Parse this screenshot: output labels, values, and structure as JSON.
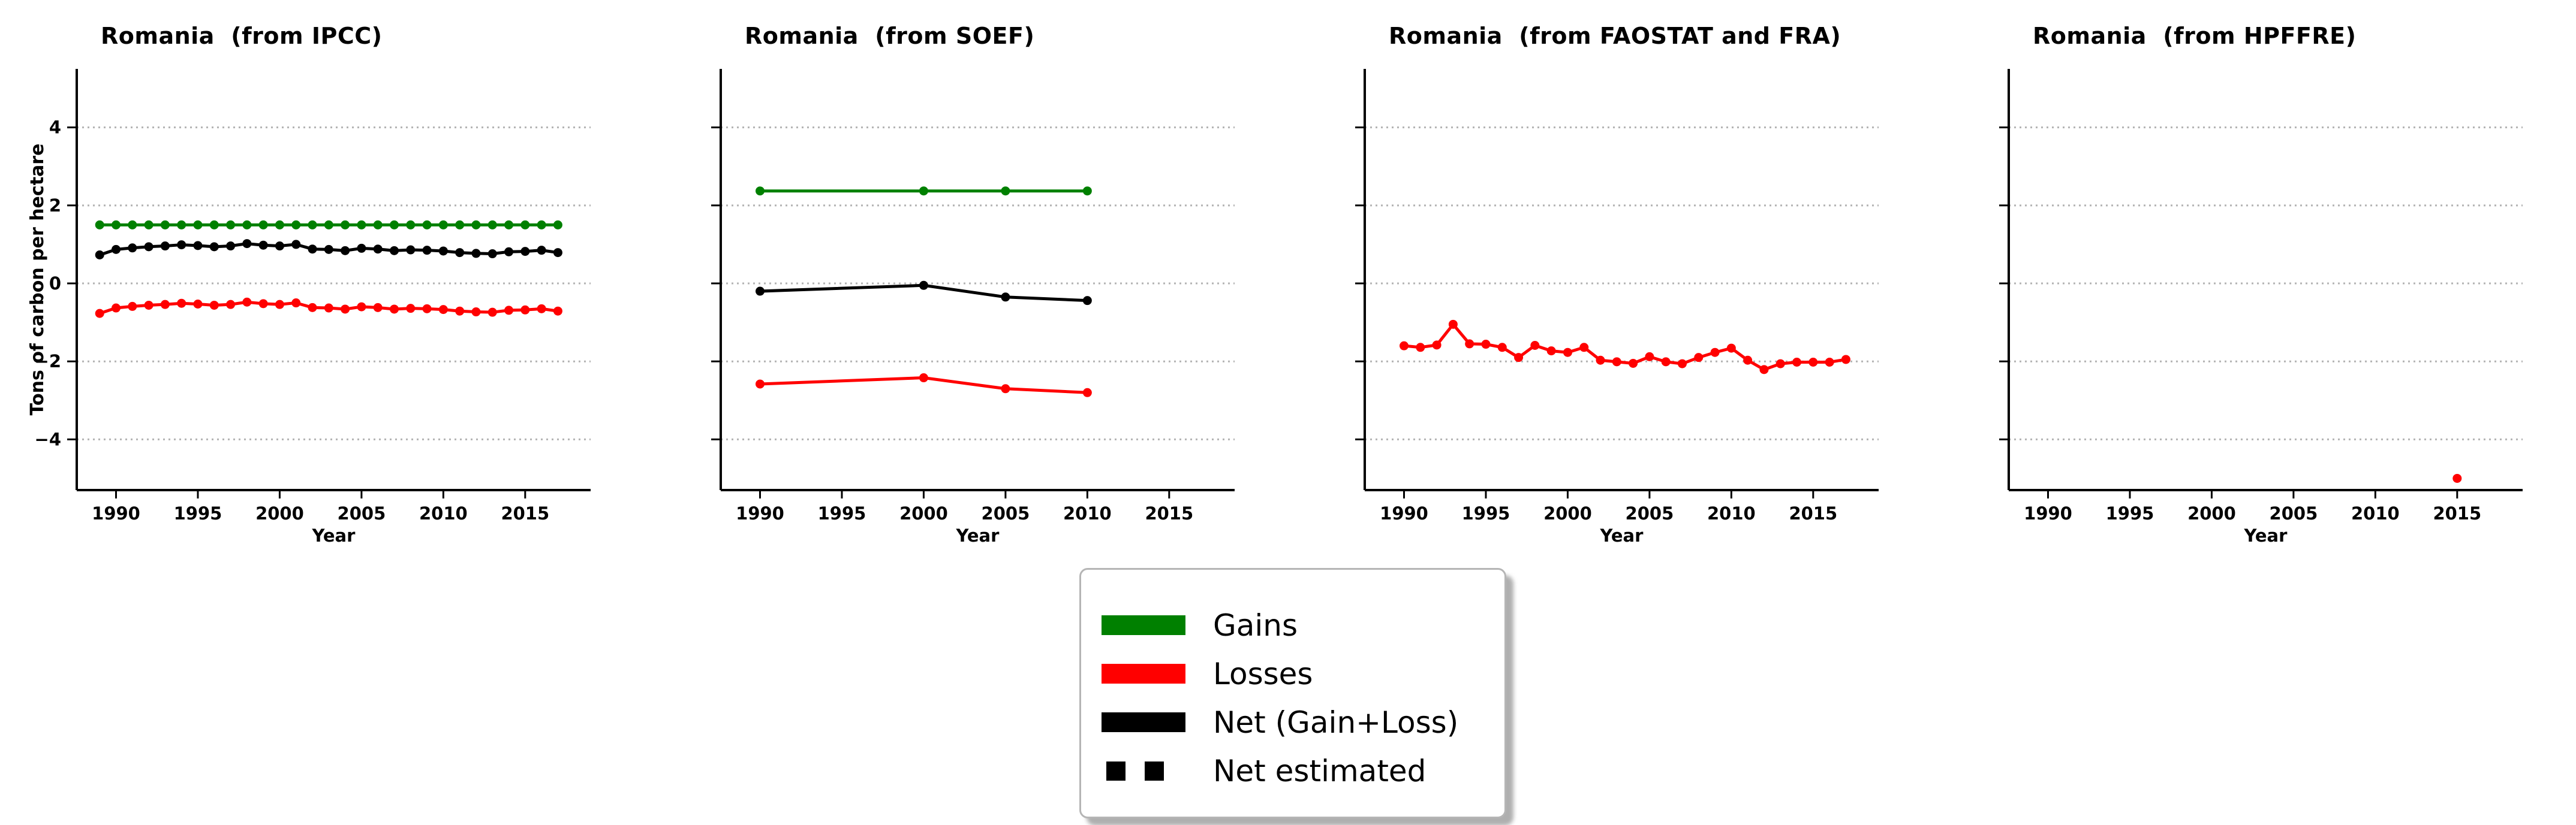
{
  "figure": {
    "xlabel": "Year",
    "ylabel": "Tons of carbon per hectare"
  },
  "legend": {
    "items": [
      {
        "label": "Gains",
        "color": "#008000",
        "swatch": "solid"
      },
      {
        "label": "Losses",
        "color": "#ff0000",
        "swatch": "solid"
      },
      {
        "label": "Net (Gain+Loss)",
        "color": "#000000",
        "swatch": "solid"
      },
      {
        "label": "Net estimated",
        "color": "#000000",
        "swatch": "dashed"
      }
    ]
  },
  "colors": {
    "gains": "#008000",
    "losses": "#ff0000",
    "net": "#000000",
    "grid": "#b3b3b3"
  },
  "chart_data": [
    {
      "type": "line",
      "title": "Romania  (from IPCC)",
      "xlabel": "Year",
      "ylabel": "Tons of carbon per hectare",
      "show_y_tick_labels": true,
      "xticks": [
        1990,
        1995,
        2000,
        2005,
        2010,
        2015
      ],
      "yticks": [
        -4,
        -2,
        0,
        2,
        4
      ],
      "xlim": [
        1987.6,
        2019.0
      ],
      "ylim": [
        -5.3,
        5.5
      ],
      "grid": true,
      "series": [
        {
          "name": "Gains",
          "color": "#008000",
          "x": [
            1989,
            1990,
            1991,
            1992,
            1993,
            1994,
            1995,
            1996,
            1997,
            1998,
            1999,
            2000,
            2001,
            2002,
            2003,
            2004,
            2005,
            2006,
            2007,
            2008,
            2009,
            2010,
            2011,
            2012,
            2013,
            2014,
            2015,
            2016,
            2017
          ],
          "y": [
            1.5,
            1.5,
            1.5,
            1.5,
            1.5,
            1.5,
            1.5,
            1.5,
            1.5,
            1.5,
            1.5,
            1.5,
            1.5,
            1.5,
            1.5,
            1.5,
            1.5,
            1.5,
            1.5,
            1.5,
            1.5,
            1.5,
            1.5,
            1.5,
            1.5,
            1.5,
            1.5,
            1.5,
            1.5
          ]
        },
        {
          "name": "Net (Gain+Loss)",
          "color": "#000000",
          "x": [
            1989,
            1990,
            1991,
            1992,
            1993,
            1994,
            1995,
            1996,
            1997,
            1998,
            1999,
            2000,
            2001,
            2002,
            2003,
            2004,
            2005,
            2006,
            2007,
            2008,
            2009,
            2010,
            2011,
            2012,
            2013,
            2014,
            2015,
            2016,
            2017
          ],
          "y": [
            0.73,
            0.87,
            0.91,
            0.94,
            0.96,
            0.99,
            0.97,
            0.94,
            0.96,
            1.02,
            0.98,
            0.96,
            1.0,
            0.88,
            0.87,
            0.84,
            0.9,
            0.88,
            0.84,
            0.86,
            0.85,
            0.83,
            0.79,
            0.77,
            0.76,
            0.81,
            0.82,
            0.85,
            0.79
          ]
        },
        {
          "name": "Losses",
          "color": "#ff0000",
          "x": [
            1989,
            1990,
            1991,
            1992,
            1993,
            1994,
            1995,
            1996,
            1997,
            1998,
            1999,
            2000,
            2001,
            2002,
            2003,
            2004,
            2005,
            2006,
            2007,
            2008,
            2009,
            2010,
            2011,
            2012,
            2013,
            2014,
            2015,
            2016,
            2017
          ],
          "y": [
            -0.77,
            -0.63,
            -0.59,
            -0.56,
            -0.54,
            -0.51,
            -0.53,
            -0.56,
            -0.54,
            -0.48,
            -0.52,
            -0.54,
            -0.5,
            -0.62,
            -0.63,
            -0.66,
            -0.6,
            -0.62,
            -0.66,
            -0.64,
            -0.65,
            -0.67,
            -0.71,
            -0.73,
            -0.74,
            -0.69,
            -0.68,
            -0.65,
            -0.71
          ]
        }
      ]
    },
    {
      "type": "line",
      "title": "Romania  (from SOEF)",
      "xlabel": "Year",
      "ylabel": "",
      "show_y_tick_labels": false,
      "xticks": [
        1990,
        1995,
        2000,
        2005,
        2010,
        2015
      ],
      "yticks": [
        -4,
        -2,
        0,
        2,
        4
      ],
      "xlim": [
        1987.6,
        2019.0
      ],
      "ylim": [
        -5.3,
        5.5
      ],
      "grid": true,
      "series": [
        {
          "name": "Gains",
          "color": "#008000",
          "x": [
            1990,
            2000,
            2005,
            2010
          ],
          "y": [
            2.37,
            2.37,
            2.37,
            2.37
          ]
        },
        {
          "name": "Net (Gain+Loss)",
          "color": "#000000",
          "x": [
            1990,
            2000,
            2005,
            2010
          ],
          "y": [
            -0.2,
            -0.05,
            -0.35,
            -0.44
          ]
        },
        {
          "name": "Losses",
          "color": "#ff0000",
          "x": [
            1990,
            2000,
            2005,
            2010
          ],
          "y": [
            -2.58,
            -2.42,
            -2.7,
            -2.8
          ]
        }
      ]
    },
    {
      "type": "line",
      "title": "Romania  (from FAOSTAT and FRA)",
      "xlabel": "Year",
      "ylabel": "",
      "show_y_tick_labels": false,
      "xticks": [
        1990,
        1995,
        2000,
        2005,
        2010,
        2015
      ],
      "yticks": [
        -4,
        -2,
        0,
        2,
        4
      ],
      "xlim": [
        1987.6,
        2019.0
      ],
      "ylim": [
        -5.3,
        5.5
      ],
      "grid": true,
      "series": [
        {
          "name": "Losses",
          "color": "#ff0000",
          "x": [
            1990,
            1991,
            1992,
            1993,
            1994,
            1995,
            1996,
            1997,
            1998,
            1999,
            2000,
            2001,
            2002,
            2003,
            2004,
            2005,
            2006,
            2007,
            2008,
            2009,
            2010,
            2011,
            2012,
            2013,
            2014,
            2015,
            2016,
            2017
          ],
          "y": [
            -1.6,
            -1.64,
            -1.58,
            -1.05,
            -1.55,
            -1.56,
            -1.64,
            -1.9,
            -1.59,
            -1.73,
            -1.77,
            -1.64,
            -1.97,
            -2.01,
            -2.05,
            -1.88,
            -2.01,
            -2.06,
            -1.9,
            -1.77,
            -1.66,
            -1.97,
            -2.21,
            -2.06,
            -2.02,
            -2.02,
            -2.02,
            -1.95
          ]
        }
      ]
    },
    {
      "type": "scatter",
      "title": "Romania  (from HPFFRE)",
      "xlabel": "Year",
      "ylabel": "",
      "show_y_tick_labels": false,
      "xticks": [
        1990,
        1995,
        2000,
        2005,
        2010,
        2015
      ],
      "yticks": [
        -4,
        -2,
        0,
        2,
        4
      ],
      "xlim": [
        1987.6,
        2019.0
      ],
      "ylim": [
        -5.3,
        5.5
      ],
      "grid": true,
      "series": [
        {
          "name": "Losses",
          "color": "#ff0000",
          "x": [
            2015
          ],
          "y": [
            -5.0
          ]
        }
      ]
    }
  ]
}
